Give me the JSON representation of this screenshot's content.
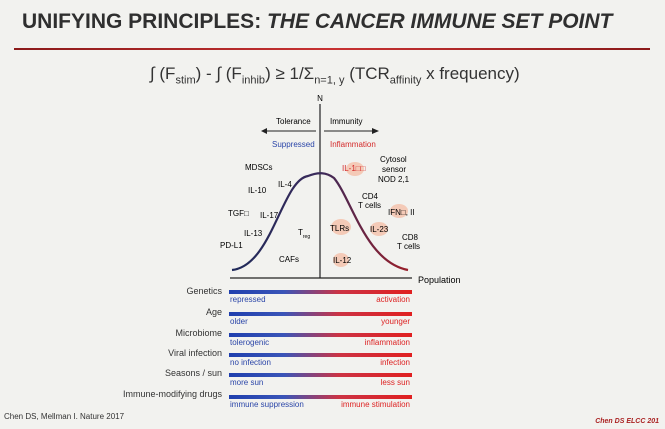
{
  "title": {
    "prefix": "UNIFYING PRINCIPLES:",
    "italic": "THE CANCER IMMUNE SET POINT"
  },
  "formula": {
    "part1": "∫ (F",
    "sub1": "stim",
    "part2": ") - ∫ (F",
    "sub2": "inhib",
    "part3": ") ≥ 1/Σ",
    "sub3": "n=1, y",
    "part4": " (TCR",
    "sub4": "affinity",
    "part5": " x frequency)"
  },
  "diagram": {
    "y_axis_label": "N",
    "x_axis_label": "Population",
    "left_arrow": "Tolerance",
    "right_arrow": "Immunity",
    "left_state": "Suppressed",
    "right_state": "Inflammation",
    "left_items": {
      "mdscs": "MDSCs",
      "il10": "IL-10",
      "il4": "IL-4",
      "tgf": "TGF□",
      "il17": "IL-17",
      "il13": "IL-13",
      "treg": "T",
      "treg_sub": "reg",
      "pdl1": "PD-L1",
      "cafs": "CAFs"
    },
    "right_items": {
      "il1": "IL-1□□",
      "cytosol": [
        "Cytosol",
        "sensor",
        "NOD 2,1"
      ],
      "cd4": [
        "CD4",
        "T cells"
      ],
      "ifn": "IFN□, II",
      "tlrs": "TLRs",
      "il23": "IL-23",
      "cd8": [
        "CD8",
        "T cells"
      ],
      "il12": "IL-12"
    },
    "colors": {
      "curve": "#1f2a5a",
      "blue": "#2a45a8",
      "red": "#d42a2a"
    }
  },
  "factors": [
    {
      "label": "Genetics",
      "left": "repressed",
      "right": "activation"
    },
    {
      "label": "Age",
      "left": "older",
      "right": "younger"
    },
    {
      "label": "Microbiome",
      "left": "tolerogenic",
      "right": "inflammation"
    },
    {
      "label": "Viral infection",
      "left": "no infection",
      "right": "infection"
    },
    {
      "label": "Seasons / sun",
      "left": "more sun",
      "right": "less sun"
    },
    {
      "label": "Immune-modifying drugs",
      "left": "immune suppression",
      "right": "immune stimulation"
    }
  ],
  "citation": "Chen DS, Mellman I. Nature 2017",
  "footer": "Chen DS ELCC 201"
}
